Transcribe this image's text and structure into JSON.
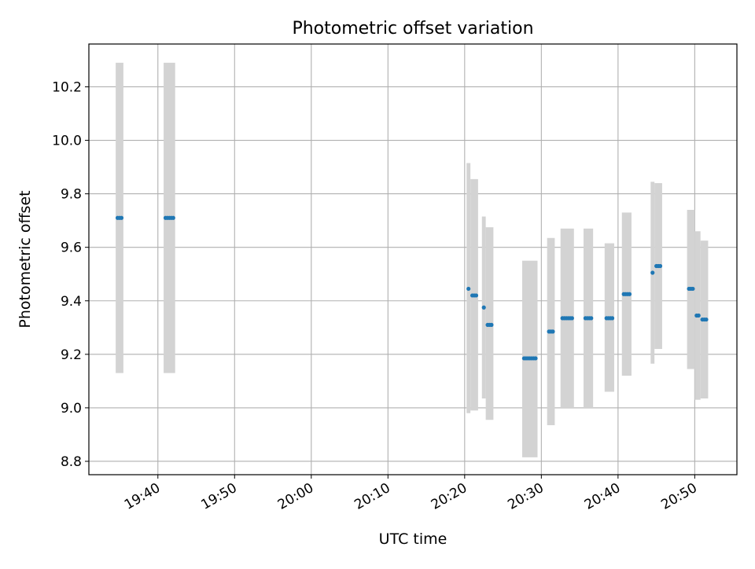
{
  "chart_data": {
    "type": "scatter",
    "title": "Photometric offset variation",
    "xlabel": "UTC time",
    "ylabel": "Photometric offset",
    "xlim": [
      "19:31:00",
      "20:55:30"
    ],
    "ylim": [
      8.75,
      10.36
    ],
    "x_ticks": [
      "19:40",
      "19:50",
      "20:00",
      "20:10",
      "20:20",
      "20:30",
      "20:40",
      "20:50"
    ],
    "y_ticks": [
      "8.8",
      "9.0",
      "9.2",
      "9.4",
      "9.6",
      "9.8",
      "10.0",
      "10.2"
    ],
    "grid": true,
    "colors": {
      "points": "#1f77b4",
      "error_bars": "#d3d3d3",
      "grid": "#b0b0b0",
      "axes": "#000000"
    },
    "error_bars": [
      {
        "x_start": "19:34:30",
        "x_end": "19:35:30",
        "low": 9.13,
        "high": 10.29
      },
      {
        "x_start": "19:40:45",
        "x_end": "19:42:15",
        "low": 9.13,
        "high": 10.29
      },
      {
        "x_start": "20:20:15",
        "x_end": "20:20:45",
        "low": 8.98,
        "high": 9.915
      },
      {
        "x_start": "20:20:45",
        "x_end": "20:21:45",
        "low": 8.99,
        "high": 9.855
      },
      {
        "x_start": "20:22:15",
        "x_end": "20:22:45",
        "low": 9.035,
        "high": 9.715
      },
      {
        "x_start": "20:22:45",
        "x_end": "20:23:45",
        "low": 8.955,
        "high": 9.675
      },
      {
        "x_start": "20:27:30",
        "x_end": "20:29:30",
        "low": 8.815,
        "high": 9.55
      },
      {
        "x_start": "20:30:45",
        "x_end": "20:31:45",
        "low": 8.935,
        "high": 9.635
      },
      {
        "x_start": "20:32:30",
        "x_end": "20:34:15",
        "low": 9.0,
        "high": 9.67
      },
      {
        "x_start": "20:35:30",
        "x_end": "20:36:45",
        "low": 9.0,
        "high": 9.67
      },
      {
        "x_start": "20:38:15",
        "x_end": "20:39:30",
        "low": 9.06,
        "high": 9.615
      },
      {
        "x_start": "20:40:30",
        "x_end": "20:41:45",
        "low": 9.12,
        "high": 9.73
      },
      {
        "x_start": "20:44:15",
        "x_end": "20:44:45",
        "low": 9.165,
        "high": 9.845
      },
      {
        "x_start": "20:44:45",
        "x_end": "20:45:45",
        "low": 9.22,
        "high": 9.84
      },
      {
        "x_start": "20:49:00",
        "x_end": "20:50:00",
        "low": 9.145,
        "high": 9.74
      },
      {
        "x_start": "20:50:00",
        "x_end": "20:50:45",
        "low": 9.03,
        "high": 9.66
      },
      {
        "x_start": "20:50:45",
        "x_end": "20:51:45",
        "low": 9.035,
        "high": 9.625
      }
    ],
    "points": [
      {
        "x": "19:34:45",
        "y": 9.71
      },
      {
        "x": "19:35:00",
        "y": 9.71
      },
      {
        "x": "19:35:15",
        "y": 9.71
      },
      {
        "x": "19:41:00",
        "y": 9.71
      },
      {
        "x": "19:41:15",
        "y": 9.71
      },
      {
        "x": "19:41:30",
        "y": 9.71
      },
      {
        "x": "19:41:45",
        "y": 9.71
      },
      {
        "x": "19:42:00",
        "y": 9.71
      },
      {
        "x": "20:20:30",
        "y": 9.445
      },
      {
        "x": "20:21:00",
        "y": 9.42
      },
      {
        "x": "20:21:15",
        "y": 9.42
      },
      {
        "x": "20:21:30",
        "y": 9.42
      },
      {
        "x": "20:22:30",
        "y": 9.375
      },
      {
        "x": "20:23:00",
        "y": 9.31
      },
      {
        "x": "20:23:15",
        "y": 9.31
      },
      {
        "x": "20:23:30",
        "y": 9.31
      },
      {
        "x": "20:27:45",
        "y": 9.185
      },
      {
        "x": "20:28:00",
        "y": 9.185
      },
      {
        "x": "20:28:15",
        "y": 9.185
      },
      {
        "x": "20:28:30",
        "y": 9.185
      },
      {
        "x": "20:28:45",
        "y": 9.185
      },
      {
        "x": "20:29:00",
        "y": 9.185
      },
      {
        "x": "20:29:15",
        "y": 9.185
      },
      {
        "x": "20:31:00",
        "y": 9.285
      },
      {
        "x": "20:31:15",
        "y": 9.285
      },
      {
        "x": "20:31:30",
        "y": 9.285
      },
      {
        "x": "20:32:45",
        "y": 9.335
      },
      {
        "x": "20:33:00",
        "y": 9.335
      },
      {
        "x": "20:33:15",
        "y": 9.335
      },
      {
        "x": "20:33:30",
        "y": 9.335
      },
      {
        "x": "20:33:45",
        "y": 9.335
      },
      {
        "x": "20:34:00",
        "y": 9.335
      },
      {
        "x": "20:35:45",
        "y": 9.335
      },
      {
        "x": "20:36:00",
        "y": 9.335
      },
      {
        "x": "20:36:15",
        "y": 9.335
      },
      {
        "x": "20:36:30",
        "y": 9.335
      },
      {
        "x": "20:38:30",
        "y": 9.335
      },
      {
        "x": "20:38:45",
        "y": 9.335
      },
      {
        "x": "20:39:00",
        "y": 9.335
      },
      {
        "x": "20:39:15",
        "y": 9.335
      },
      {
        "x": "20:40:45",
        "y": 9.425
      },
      {
        "x": "20:41:00",
        "y": 9.425
      },
      {
        "x": "20:41:15",
        "y": 9.425
      },
      {
        "x": "20:41:30",
        "y": 9.425
      },
      {
        "x": "20:44:30",
        "y": 9.505
      },
      {
        "x": "20:45:00",
        "y": 9.53
      },
      {
        "x": "20:45:15",
        "y": 9.53
      },
      {
        "x": "20:45:30",
        "y": 9.53
      },
      {
        "x": "20:49:15",
        "y": 9.445
      },
      {
        "x": "20:49:30",
        "y": 9.445
      },
      {
        "x": "20:49:45",
        "y": 9.445
      },
      {
        "x": "20:50:15",
        "y": 9.345
      },
      {
        "x": "20:50:30",
        "y": 9.345
      },
      {
        "x": "20:51:00",
        "y": 9.33
      },
      {
        "x": "20:51:15",
        "y": 9.33
      },
      {
        "x": "20:51:30",
        "y": 9.33
      }
    ]
  }
}
